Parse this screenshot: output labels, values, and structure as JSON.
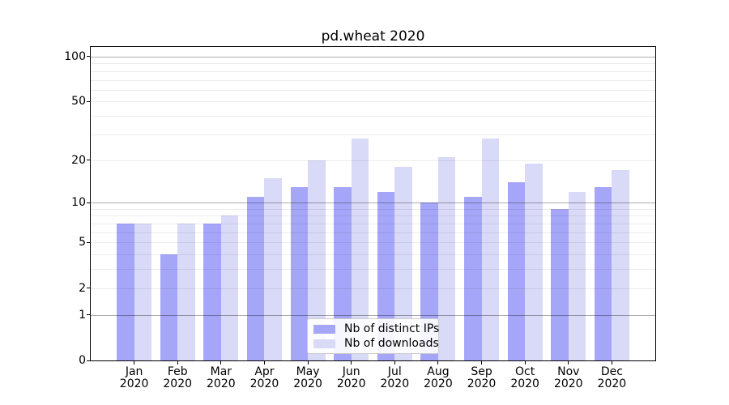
{
  "chart_data": {
    "type": "bar",
    "title": "pd.wheat 2020",
    "categories": [
      "Jan",
      "Feb",
      "Mar",
      "Apr",
      "May",
      "Jun",
      "Jul",
      "Aug",
      "Sep",
      "Oct",
      "Nov",
      "Dec"
    ],
    "category_year": "2020",
    "series": [
      {
        "name": "Nb of distinct IPs",
        "color": "#a6a6f8",
        "values": [
          7,
          4,
          7,
          11,
          13,
          13,
          12,
          10,
          11,
          14,
          9,
          13
        ]
      },
      {
        "name": "Nb of downloads",
        "color": "#d9d9f8",
        "values": [
          7,
          7,
          8,
          15,
          20,
          28,
          18,
          21,
          28,
          19,
          12,
          17
        ]
      }
    ],
    "xlabel": "",
    "ylabel": "",
    "yscale": "log1p",
    "ylim": [
      0,
      116
    ],
    "yticks": [
      0,
      1,
      2,
      5,
      10,
      20,
      50,
      100
    ],
    "grid_major_values": [
      1,
      10,
      100
    ],
    "grid_minor_values": [
      2,
      3,
      4,
      5,
      6,
      7,
      8,
      9,
      20,
      30,
      40,
      50,
      60,
      70,
      80,
      90
    ],
    "grid": true,
    "legend_position": "lower center",
    "colors": {
      "grid_major": "rgba(0,0,0,0.32)",
      "grid_minor": "rgba(0,0,0,0.075)",
      "spine": "#000000",
      "text": "#000000",
      "background": "#ffffff"
    }
  }
}
